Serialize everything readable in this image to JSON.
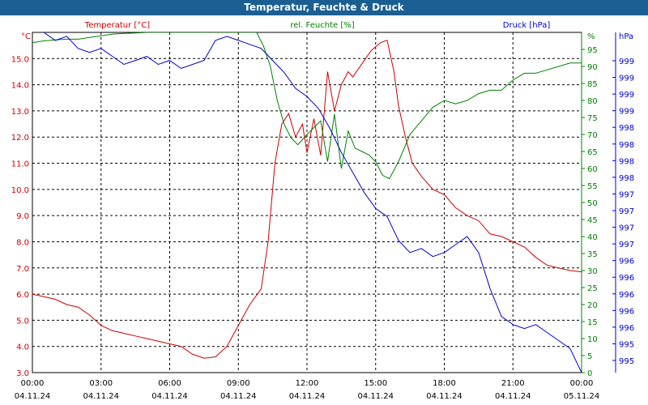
{
  "title": "Temperatur, Feuchte & Druck",
  "chart_data": {
    "type": "line",
    "title": "Temperatur, Feuchte & Druck",
    "grid": true,
    "colors": {
      "temperature": "#cc0000",
      "humidity": "#008000",
      "pressure": "#0000cc",
      "titlebar": "#1a5e92"
    },
    "axes": {
      "left": {
        "label": "Temperatur [°C]",
        "unit": "°C",
        "range": [
          3.0,
          16.0
        ],
        "ticks": [
          "3.0",
          "4.0",
          "5.0",
          "6.0",
          "7.0",
          "8.0",
          "9.0",
          "10.0",
          "11.0",
          "12.0",
          "13.0",
          "14.0",
          "15.0"
        ]
      },
      "mid": {
        "label": "rel. Feuchte [%]",
        "unit": "%",
        "range": [
          0,
          100
        ],
        "ticks": [
          "0",
          "5",
          "10",
          "15",
          "20",
          "25",
          "30",
          "35",
          "40",
          "45",
          "50",
          "55",
          "60",
          "65",
          "70",
          "75",
          "80",
          "85",
          "90",
          "95"
        ]
      },
      "right": {
        "label": "Druck [hPa]",
        "unit": "hPa",
        "ticks": [
          "995",
          "995",
          "996",
          "996",
          "996",
          "996",
          "996",
          "997",
          "997",
          "997",
          "997",
          "998",
          "998",
          "998",
          "998",
          "999",
          "999",
          "999",
          "999"
        ]
      }
    },
    "x_ticks": [
      {
        "time": "00:00",
        "date": "04.11.24"
      },
      {
        "time": "03:00",
        "date": "04.11.24"
      },
      {
        "time": "06:00",
        "date": "04.11.24"
      },
      {
        "time": "09:00",
        "date": "04.11.24"
      },
      {
        "time": "12:00",
        "date": "04.11.24"
      },
      {
        "time": "15:00",
        "date": "04.11.24"
      },
      {
        "time": "18:00",
        "date": "04.11.24"
      },
      {
        "time": "21:00",
        "date": "04.11.24"
      },
      {
        "time": "00:00",
        "date": "05.11.24"
      }
    ],
    "x_range_hours": [
      0,
      24
    ],
    "series": [
      {
        "name": "Temperatur [°C]",
        "axis": "left",
        "x": [
          0,
          0.5,
          1,
          1.5,
          2,
          2.5,
          3,
          3.5,
          4,
          4.5,
          5,
          5.5,
          6,
          6.5,
          7,
          7.5,
          8,
          8.5,
          9,
          9.5,
          10,
          10.3,
          10.6,
          10.9,
          11.2,
          11.5,
          11.8,
          12,
          12.3,
          12.6,
          12.9,
          13.2,
          13.5,
          13.8,
          14,
          14.4,
          14.8,
          15.2,
          15.5,
          15.8,
          16,
          16.3,
          16.6,
          17,
          17.5,
          18,
          18.5,
          19,
          19.5,
          20,
          20.5,
          21,
          21.5,
          22,
          22.5,
          23,
          23.5,
          24
        ],
        "y": [
          6.0,
          5.9,
          5.8,
          5.6,
          5.5,
          5.2,
          4.8,
          4.6,
          4.5,
          4.4,
          4.3,
          4.2,
          4.1,
          4.0,
          3.7,
          3.55,
          3.6,
          4.0,
          4.8,
          5.6,
          6.2,
          8.0,
          11.0,
          12.5,
          12.9,
          12.0,
          12.5,
          11.4,
          12.7,
          11.3,
          14.5,
          13.0,
          14.0,
          14.5,
          14.3,
          14.8,
          15.3,
          15.6,
          15.7,
          14.5,
          13.2,
          12.0,
          11.0,
          10.5,
          10.0,
          9.8,
          9.3,
          9.0,
          8.8,
          8.3,
          8.2,
          8.0,
          7.8,
          7.4,
          7.1,
          7.0,
          6.9,
          6.85
        ]
      },
      {
        "name": "rel. Feuchte [%]",
        "axis": "mid",
        "x": [
          0,
          0.5,
          1,
          1.5,
          2,
          2.5,
          3,
          3.5,
          4,
          4.5,
          5,
          6,
          7,
          8,
          9,
          9.5,
          9.8,
          10.1,
          10.4,
          10.7,
          11,
          11.3,
          11.6,
          12,
          12.3,
          12.6,
          12.9,
          13.2,
          13.5,
          13.8,
          14.1,
          14.4,
          14.7,
          15,
          15.3,
          15.6,
          16,
          16.5,
          17,
          17.5,
          18,
          18.5,
          19,
          19.5,
          20,
          20.5,
          21,
          21.5,
          22,
          22.5,
          23,
          23.5,
          24
        ],
        "y": [
          97,
          97.5,
          97.8,
          98,
          98,
          98.5,
          99,
          99.5,
          99.7,
          99.8,
          100,
          100,
          100,
          100,
          100,
          100,
          100,
          96,
          90,
          80,
          73,
          69,
          67,
          70,
          72,
          74,
          62,
          76,
          60,
          71,
          66,
          65,
          64,
          62,
          58,
          57,
          62,
          70,
          74,
          78,
          80,
          79,
          80,
          82,
          83,
          83,
          86,
          88,
          88,
          89,
          90,
          91,
          91
        ]
      },
      {
        "name": "Druck [hPa]",
        "axis": "right",
        "x": [
          0,
          0.5,
          1,
          1.5,
          2,
          2.5,
          3,
          3.5,
          4,
          4.5,
          5,
          5.5,
          6,
          6.5,
          7,
          7.5,
          8,
          8.5,
          9,
          9.5,
          10,
          10.5,
          11,
          11.5,
          12,
          12.5,
          13,
          13.5,
          14,
          14.5,
          15,
          15.5,
          16,
          16.5,
          17,
          17.5,
          18,
          18.5,
          19,
          19.5,
          20,
          20.5,
          21,
          21.5,
          22,
          22.5,
          23,
          23.5,
          24
        ],
        "y": [
          999.15,
          999.1,
          999.0,
          999.05,
          998.9,
          998.85,
          998.9,
          998.8,
          998.7,
          998.75,
          998.8,
          998.7,
          998.75,
          998.65,
          998.7,
          998.75,
          999.0,
          999.05,
          999.0,
          998.95,
          998.9,
          998.75,
          998.6,
          998.4,
          998.3,
          998.15,
          997.9,
          997.6,
          997.35,
          997.1,
          996.9,
          996.8,
          996.5,
          996.35,
          996.4,
          996.3,
          996.35,
          996.45,
          996.55,
          996.35,
          995.9,
          995.55,
          995.45,
          995.4,
          995.45,
          995.35,
          995.25,
          995.15,
          994.85
        ]
      }
    ]
  }
}
